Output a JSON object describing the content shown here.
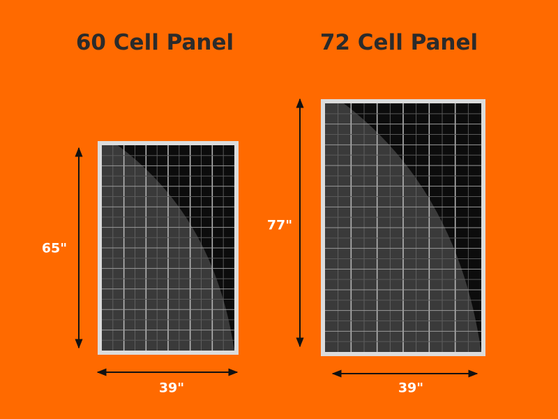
{
  "panels": [
    {
      "title": "60 Cell Panel",
      "height_label": "65\"",
      "width_label": "39\""
    },
    {
      "title": "72 Cell Panel",
      "height_label": "77\"",
      "width_label": "39\""
    }
  ]
}
